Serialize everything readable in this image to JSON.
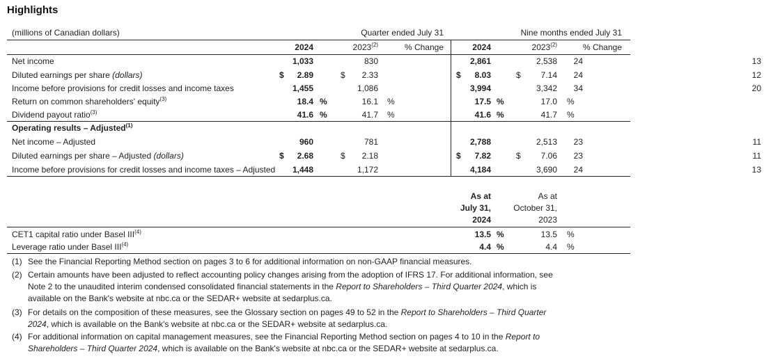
{
  "title": "Highlights",
  "units_label": "(millions of Canadian dollars)",
  "quarter_header": "Quarter ended July 31",
  "nine_months_header": "Nine months ended July 31",
  "col_headers": {
    "y2024": "2024",
    "y2023": "2023",
    "y2023_note": "(2)",
    "change": "% Change"
  },
  "rows": [
    {
      "label": "Net income",
      "q24": "1,033",
      "q23": "830",
      "qchg": "24",
      "n24": "2,861",
      "n23": "2,538",
      "nchg": "13"
    },
    {
      "label": "Diluted earnings per share",
      "label_em": "(dollars)",
      "cur": "$",
      "q24": "2.89",
      "q23": "2.33",
      "qchg": "24",
      "n24": "8.03",
      "n23": "7.14",
      "nchg": "12"
    },
    {
      "label": "Income before provisions for credit losses and income taxes",
      "q24": "1,455",
      "q23": "1,086",
      "qchg": "34",
      "n24": "3,994",
      "n23": "3,342",
      "nchg": "20"
    },
    {
      "label": "Return on common shareholders' equity",
      "note": "(3)",
      "pct": "%",
      "q24": "18.4",
      "q23": "16.1",
      "n24": "17.5",
      "n23": "17.0"
    },
    {
      "label": "Dividend payout ratio",
      "note": "(3)",
      "pct": "%",
      "q24": "41.6",
      "q23": "41.7",
      "n24": "41.6",
      "n23": "41.7"
    },
    {
      "label": "Operating results – Adjusted",
      "note": "(1)",
      "section": true
    },
    {
      "label": "Net income – Adjusted",
      "q24": "960",
      "q23": "781",
      "qchg": "23",
      "n24": "2,788",
      "n23": "2,513",
      "nchg": "11"
    },
    {
      "label": "Diluted earnings per share – Adjusted",
      "label_em": "(dollars)",
      "cur": "$",
      "q24": "2.68",
      "q23": "2.18",
      "qchg": "23",
      "n24": "7.82",
      "n23": "7.06",
      "nchg": "11"
    },
    {
      "label": "Income before provisions for credit losses and income taxes – Adjusted",
      "q24": "1,448",
      "q23": "1,172",
      "qchg": "24",
      "n24": "4,184",
      "n23": "3,690",
      "nchg": "13"
    }
  ],
  "capital_headers": {
    "a": [
      "As at",
      "July 31,",
      "2024"
    ],
    "b": [
      "As at",
      "October 31,",
      "2023"
    ]
  },
  "capital_rows": [
    {
      "label": "CET1 capital ratio under Basel III",
      "note": "(4)",
      "a": "13.5",
      "b": "13.5",
      "pct": "%"
    },
    {
      "label": "Leverage ratio under Basel III",
      "note": "(4)",
      "a": "4.4",
      "b": "4.4",
      "pct": "%"
    }
  ],
  "footnotes": [
    {
      "n": "(1)",
      "parts": [
        [
          "See the Financial Reporting Method section on pages 3 to 6 for additional information on non-GAAP financial measures.",
          ""
        ]
      ]
    },
    {
      "n": "(2)",
      "parts": [
        [
          "Certain amounts have been adjusted to reflect accounting policy changes arising from the adoption of IFRS 17. For additional information, see Note 2 to the unaudited interim condensed consolidated financial statements in the ",
          ""
        ],
        [
          "Report to Shareholders – Third Quarter 2024",
          "em"
        ],
        [
          ", which is available on the Bank's website at nbc.ca or the SEDAR+ website at sedarplus.ca.",
          ""
        ]
      ]
    },
    {
      "n": "(3)",
      "parts": [
        [
          "For details on the composition of these measures, see the Glossary section on pages 49 to 52 in the ",
          ""
        ],
        [
          "Report to Shareholders – Third Quarter 2024",
          "em"
        ],
        [
          ", which is available on the Bank's website at nbc.ca or the SEDAR+ website at sedarplus.ca.",
          ""
        ]
      ]
    },
    {
      "n": "(4)",
      "parts": [
        [
          "For additional information on capital management measures, see the Financial Reporting Method section on pages 4 to 10 in the ",
          ""
        ],
        [
          "Report to Shareholders – Third Quarter 2024",
          "em"
        ],
        [
          ", which is available on the Bank's website at nbc.ca or the SEDAR+ website at sedarplus.ca.",
          ""
        ]
      ]
    }
  ]
}
